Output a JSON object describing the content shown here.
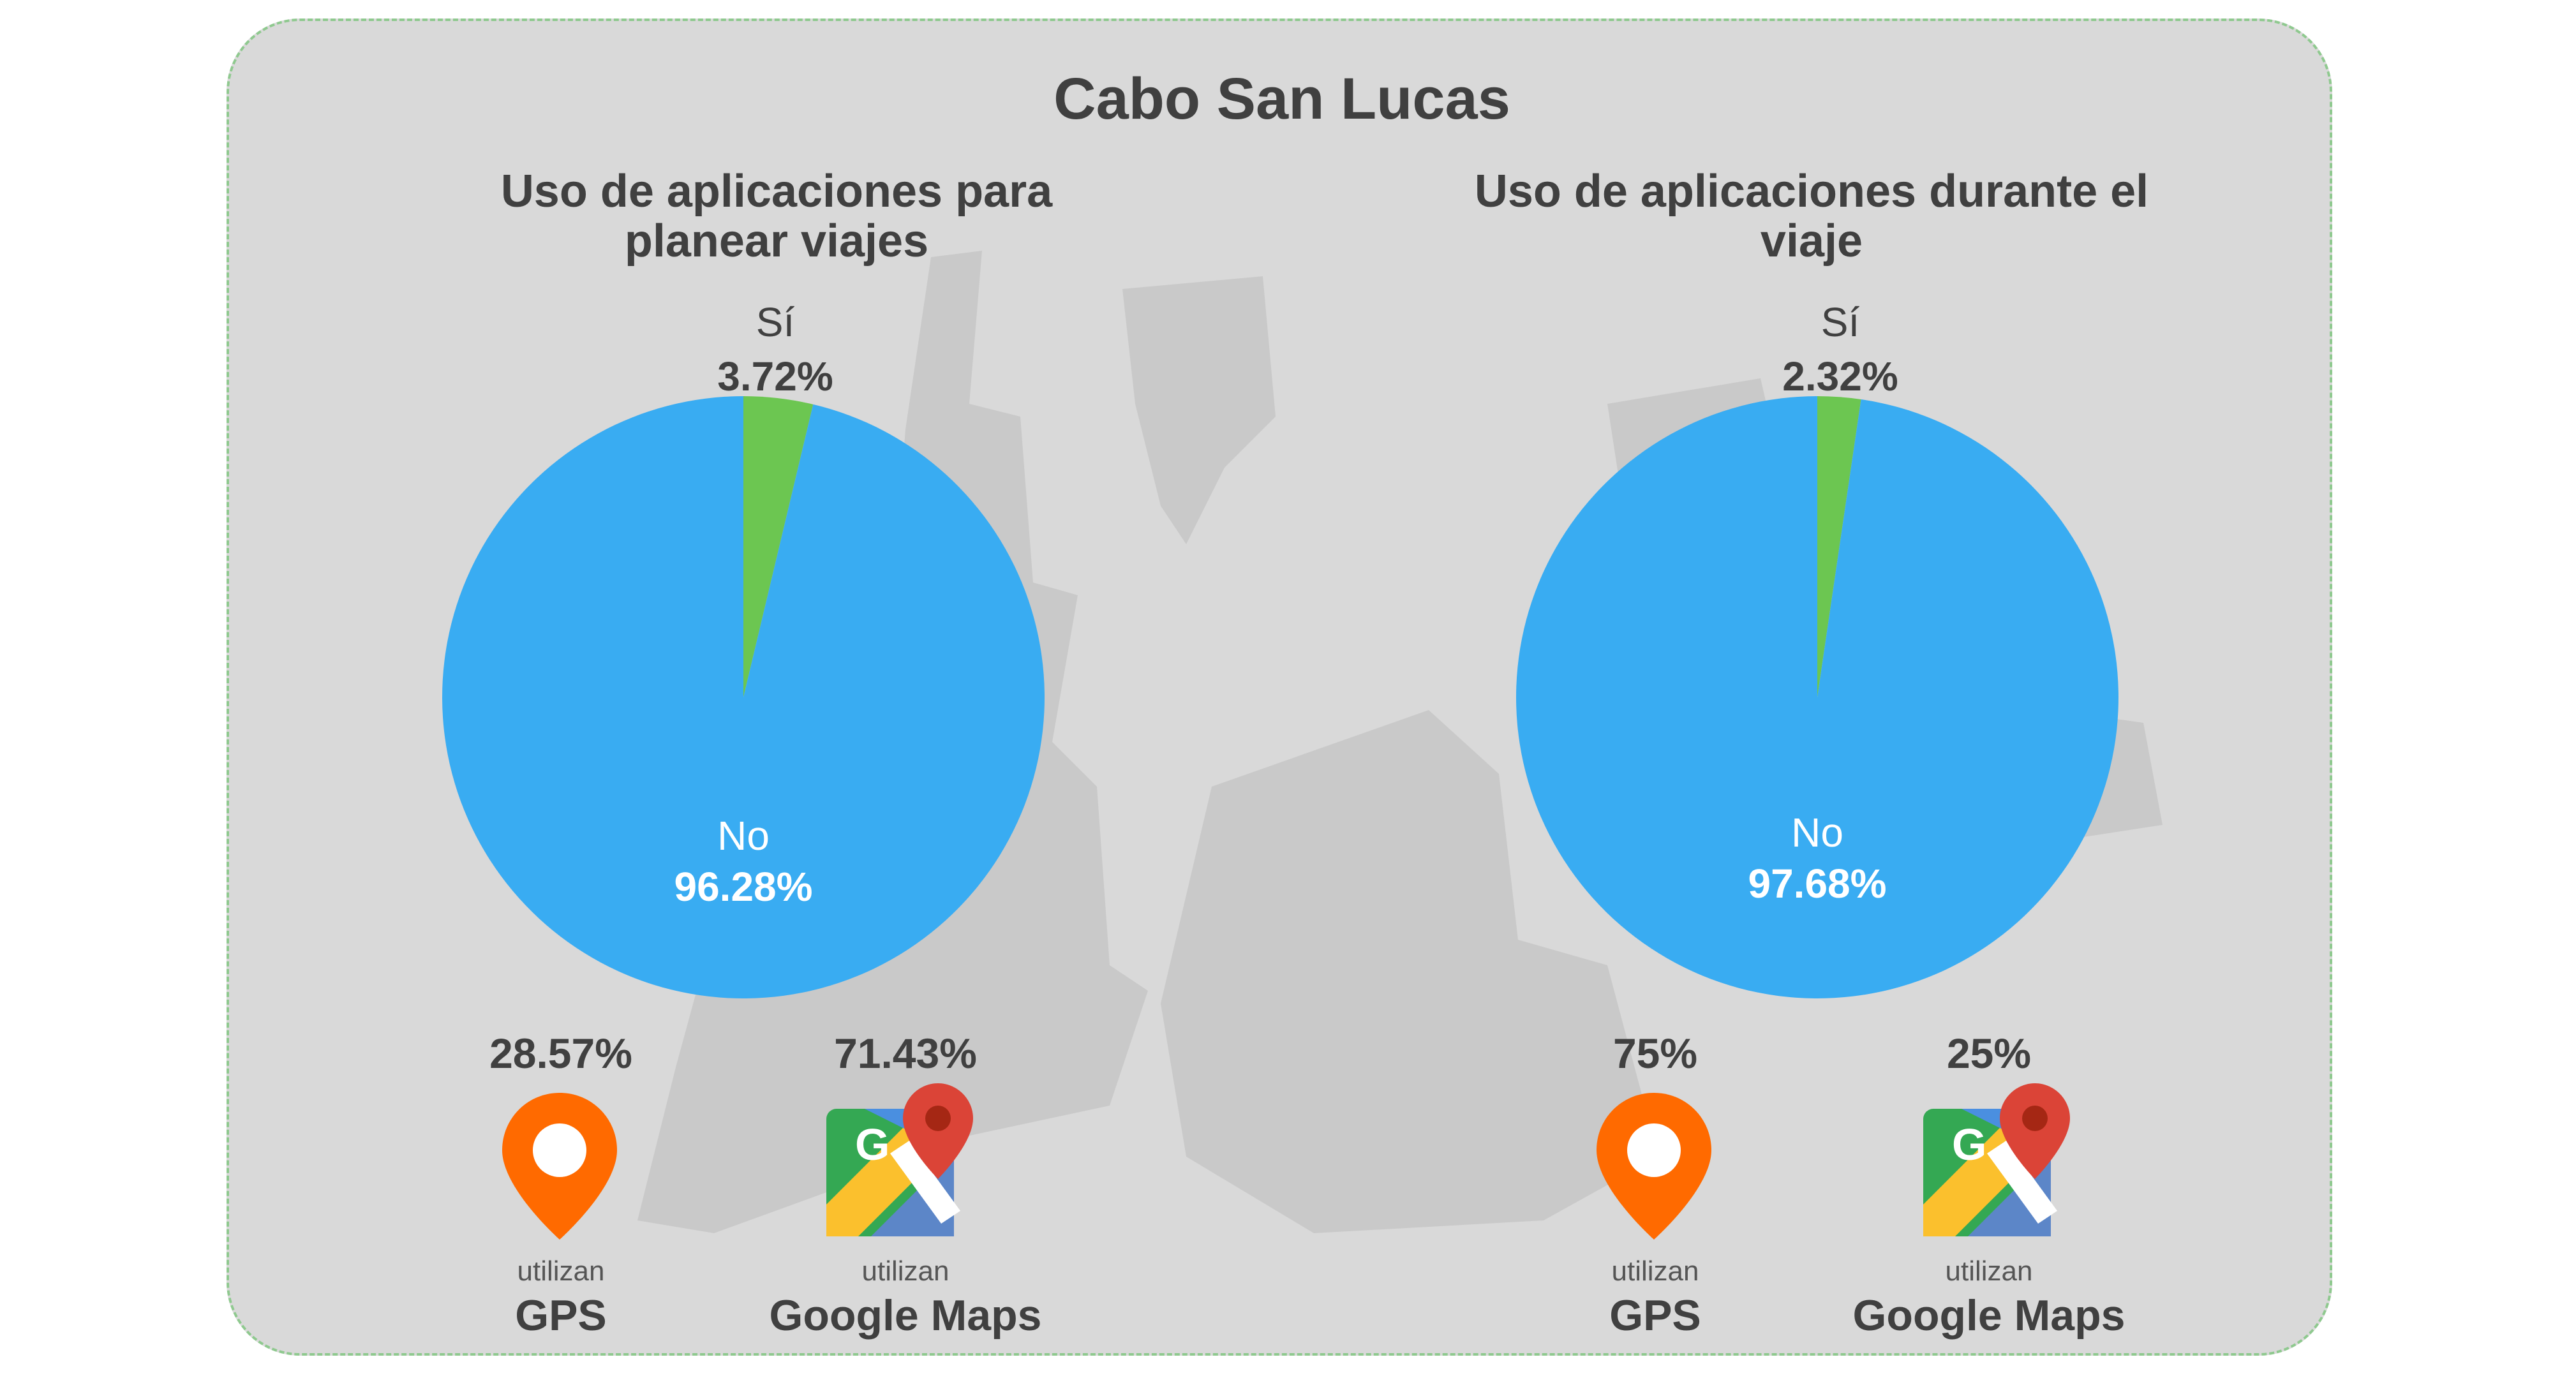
{
  "title": "Cabo San Lucas",
  "chart_data": [
    {
      "type": "pie",
      "title": "Uso de aplicaciones para planear viajes",
      "slices": [
        {
          "label": "Sí",
          "display": "3.72%",
          "value": 3.72,
          "color": "#6cc651"
        },
        {
          "label": "No",
          "display": "96.28%",
          "value": 96.28,
          "color": "#39acf2"
        }
      ],
      "apps": [
        {
          "percent": "28.57%",
          "prefix": "utilizan",
          "name": "GPS",
          "icon": "gps-pin-icon"
        },
        {
          "percent": "71.43%",
          "prefix": "utilizan",
          "name": "Google Maps",
          "icon": "google-maps-icon"
        }
      ]
    },
    {
      "type": "pie",
      "title": "Uso de aplicaciones durante el viaje",
      "slices": [
        {
          "label": "Sí",
          "display": "2.32%",
          "value": 2.32,
          "color": "#6cc651"
        },
        {
          "label": "No",
          "display": "97.68%",
          "value": 97.68,
          "color": "#39acf2"
        }
      ],
      "apps": [
        {
          "percent": "75%",
          "prefix": "utilizan",
          "name": "GPS",
          "icon": "gps-pin-icon"
        },
        {
          "percent": "25%",
          "prefix": "utilizan",
          "name": "Google Maps",
          "icon": "google-maps-icon"
        }
      ]
    }
  ]
}
